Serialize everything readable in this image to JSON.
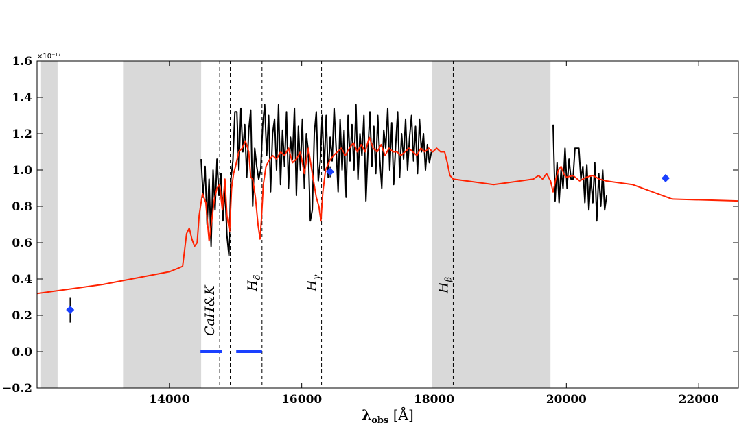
{
  "chart_data": {
    "type": "line",
    "xlabel": "λobs [Å]",
    "xlabel_main": "λ",
    "xlabel_sub": "obs",
    "xlabel_unit": " [Å]",
    "ylabel": "",
    "y_offset_label": "×10⁻¹⁷",
    "xlim": [
      12000,
      22600
    ],
    "ylim": [
      -0.2,
      1.6
    ],
    "x_ticks": [
      14000,
      16000,
      18000,
      20000,
      22000
    ],
    "y_ticks": [
      -0.2,
      0.0,
      0.2,
      0.4,
      0.6,
      0.8,
      1.0,
      1.2,
      1.4,
      1.6
    ],
    "y_tick_labels": [
      "−0.2",
      "0.0",
      "0.2",
      "0.4",
      "0.6",
      "0.8",
      "1.0",
      "1.2",
      "1.4",
      "1.6"
    ],
    "x_tick_labels": [
      "14000",
      "16000",
      "18000",
      "20000",
      "22000"
    ],
    "grid": false,
    "shaded_regions": [
      {
        "x0": 12060,
        "x1": 12310
      },
      {
        "x0": 13300,
        "x1": 14480
      },
      {
        "x0": 17970,
        "x1": 19760
      }
    ],
    "vertical_lines": [
      {
        "x": 14760,
        "style": "dashed",
        "label": "CaH&K",
        "label_main": "CaH&K",
        "label_sub": ""
      },
      {
        "x": 14920,
        "style": "dashed",
        "label": "",
        "label_main": "",
        "label_sub": ""
      },
      {
        "x": 15400,
        "style": "dashed",
        "label": "Hδ",
        "label_main": "H",
        "label_sub": "δ"
      },
      {
        "x": 16300,
        "style": "dashed",
        "label": "Hγ",
        "label_main": "H",
        "label_sub": "γ"
      },
      {
        "x": 18290,
        "style": "dashed",
        "label": "Hβ",
        "label_main": "H",
        "label_sub": "β"
      }
    ],
    "horizontal_segments": [
      {
        "x0": 14470,
        "x1": 14800,
        "y": 0.0
      },
      {
        "x0": 15010,
        "x1": 15400,
        "y": 0.0
      }
    ],
    "series": [
      {
        "name": "",
        "color": "#000000",
        "x": [
          14480,
          14510,
          14540,
          14570,
          14600,
          14630,
          14660,
          14690,
          14720,
          14750,
          14780,
          14810,
          14840,
          14870,
          14900,
          14930,
          14960,
          14990,
          15020,
          15050,
          15080,
          15110,
          15140,
          15170,
          15200,
          15230,
          15260,
          15290,
          15320,
          15350,
          15380,
          15410,
          15440,
          15470,
          15500,
          15530,
          15560,
          15590,
          15620,
          15650,
          15680,
          15710,
          15740,
          15770,
          15800,
          15830,
          15860,
          15890,
          15920,
          15950,
          15980,
          16010,
          16040,
          16070,
          16100,
          16130,
          16160,
          16190,
          16220,
          16250,
          16280,
          16310,
          16340,
          16370,
          16400,
          16430,
          16460,
          16490,
          16520,
          16550,
          16580,
          16610,
          16640,
          16670,
          16700,
          16730,
          16760,
          16790,
          16820,
          16850,
          16880,
          16910,
          16940,
          16970,
          17000,
          17030,
          17060,
          17090,
          17120,
          17150,
          17180,
          17210,
          17240,
          17270,
          17300,
          17330,
          17360,
          17390,
          17420,
          17450,
          17480,
          17510,
          17540,
          17570,
          17600,
          17630,
          17660,
          17690,
          17720,
          17750,
          17780,
          17810,
          17840,
          17870,
          17900,
          17930,
          17960
        ],
        "y": [
          1.06,
          0.85,
          1.02,
          0.7,
          0.95,
          0.58,
          1.0,
          0.78,
          1.06,
          0.86,
          0.98,
          0.72,
          0.9,
          0.64,
          0.53,
          0.95,
          1.05,
          1.32,
          1.32,
          1.0,
          1.34,
          1.1,
          1.25,
          0.96,
          1.22,
          1.33,
          0.8,
          1.12,
          1.02,
          0.95,
          1.0,
          1.25,
          1.36,
          1.08,
          1.3,
          0.88,
          1.2,
          1.28,
          1.0,
          1.36,
          0.92,
          1.22,
          1.02,
          1.32,
          0.9,
          1.18,
          1.06,
          1.34,
          0.86,
          1.24,
          1.0,
          1.28,
          0.9,
          1.2,
          1.1,
          0.72,
          0.78,
          1.2,
          1.32,
          0.94,
          1.05,
          1.3,
          1.0,
          1.3,
          0.96,
          1.18,
          1.05,
          1.34,
          1.12,
          0.88,
          1.28,
          1.0,
          1.22,
          0.85,
          1.3,
          1.05,
          1.25,
          1.0,
          1.36,
          0.95,
          1.2,
          1.08,
          1.3,
          0.83,
          1.1,
          1.32,
          1.02,
          1.24,
          0.98,
          1.3,
          1.06,
          0.9,
          1.22,
          1.12,
          1.34,
          1.0,
          1.26,
          0.92,
          1.14,
          1.32,
          0.96,
          1.2,
          1.06,
          1.28,
          1.0,
          1.18,
          1.3,
          1.05,
          1.24,
          0.98,
          1.28,
          1.1,
          1.2,
          1.0,
          1.14,
          1.04,
          1.1
        ]
      },
      {
        "name": "",
        "color": "#000000",
        "x": [
          19800,
          19830,
          19860,
          19890,
          19920,
          19950,
          19980,
          20010,
          20040,
          20070,
          20100,
          20130,
          20160,
          20190,
          20220,
          20250,
          20280,
          20310,
          20340,
          20370,
          20400,
          20430,
          20460,
          20490,
          20520,
          20550,
          20580,
          20610
        ],
        "y": [
          1.25,
          0.83,
          1.04,
          0.82,
          1.0,
          0.9,
          1.12,
          0.9,
          1.06,
          0.95,
          0.95,
          1.12,
          1.12,
          1.12,
          0.95,
          1.02,
          0.82,
          1.03,
          0.78,
          0.96,
          0.82,
          1.04,
          0.72,
          0.98,
          0.8,
          1.0,
          0.78,
          0.86
        ]
      },
      {
        "name": "",
        "color": "#ff2200",
        "x": [
          12000,
          13000,
          14000,
          14140,
          14200,
          14260,
          14300,
          14340,
          14380,
          14420,
          14450,
          14500,
          14550,
          14600,
          14640,
          14680,
          14720,
          14760,
          14800,
          14840,
          14870,
          14910,
          14940,
          14970,
          15000,
          15050,
          15100,
          15150,
          15200,
          15230,
          15260,
          15300,
          15340,
          15370,
          15390,
          15420,
          15460,
          15500,
          15560,
          15620,
          15680,
          15740,
          15800,
          15860,
          15920,
          15980,
          16040,
          16100,
          16160,
          16220,
          16260,
          16290,
          16320,
          16360,
          16420,
          16480,
          16540,
          16600,
          16660,
          16720,
          16780,
          16840,
          16900,
          16960,
          17020,
          17080,
          17140,
          17200,
          17260,
          17320,
          17380,
          17440,
          17500,
          17560,
          17620,
          17680,
          17740,
          17800,
          17860,
          17920,
          17980,
          18040,
          18100,
          18160,
          18200,
          18240,
          18290,
          18900,
          19500,
          19580,
          19640,
          19700,
          19760,
          19800,
          19840,
          19880,
          19920,
          19960,
          20000,
          20100,
          20200,
          20300,
          20400,
          20500,
          20600,
          21000,
          21600,
          22600
        ],
        "y": [
          0.32,
          0.37,
          0.44,
          0.46,
          0.47,
          0.65,
          0.68,
          0.62,
          0.58,
          0.6,
          0.75,
          0.87,
          0.82,
          0.61,
          0.72,
          0.84,
          0.9,
          0.92,
          0.78,
          0.95,
          0.75,
          0.66,
          0.9,
          0.98,
          1.02,
          1.1,
          1.12,
          1.16,
          1.1,
          0.96,
          0.95,
          0.85,
          0.7,
          0.62,
          0.72,
          0.92,
          1.02,
          1.05,
          1.08,
          1.06,
          1.1,
          1.08,
          1.12,
          1.04,
          1.06,
          1.1,
          0.98,
          1.12,
          0.98,
          0.85,
          0.8,
          0.72,
          0.88,
          1.0,
          1.05,
          1.08,
          1.1,
          1.12,
          1.08,
          1.12,
          1.15,
          1.1,
          1.14,
          1.1,
          1.18,
          1.12,
          1.1,
          1.14,
          1.08,
          1.12,
          1.1,
          1.1,
          1.08,
          1.1,
          1.12,
          1.1,
          1.08,
          1.12,
          1.1,
          1.12,
          1.1,
          1.12,
          1.1,
          1.1,
          1.04,
          0.97,
          0.95,
          0.92,
          0.95,
          0.97,
          0.95,
          0.98,
          0.94,
          0.88,
          0.95,
          1.0,
          1.02,
          0.98,
          0.96,
          0.97,
          0.94,
          0.96,
          0.97,
          0.95,
          0.94,
          0.92,
          0.84,
          0.83
        ]
      }
    ],
    "points": [
      {
        "x": 12500,
        "y": 0.23,
        "yerr": 0.07,
        "color": "#1a40ff"
      },
      {
        "x": 16430,
        "y": 0.99,
        "yerr": 0.03,
        "color": "#1a40ff"
      },
      {
        "x": 21500,
        "y": 0.955,
        "yerr": 0.02,
        "color": "#1a40ff"
      }
    ],
    "colors": {
      "shade": "#d9d9d9",
      "model": "#ff2200",
      "observed": "#000000",
      "photometry": "#1a40ff",
      "segment": "#1a40ff"
    }
  }
}
